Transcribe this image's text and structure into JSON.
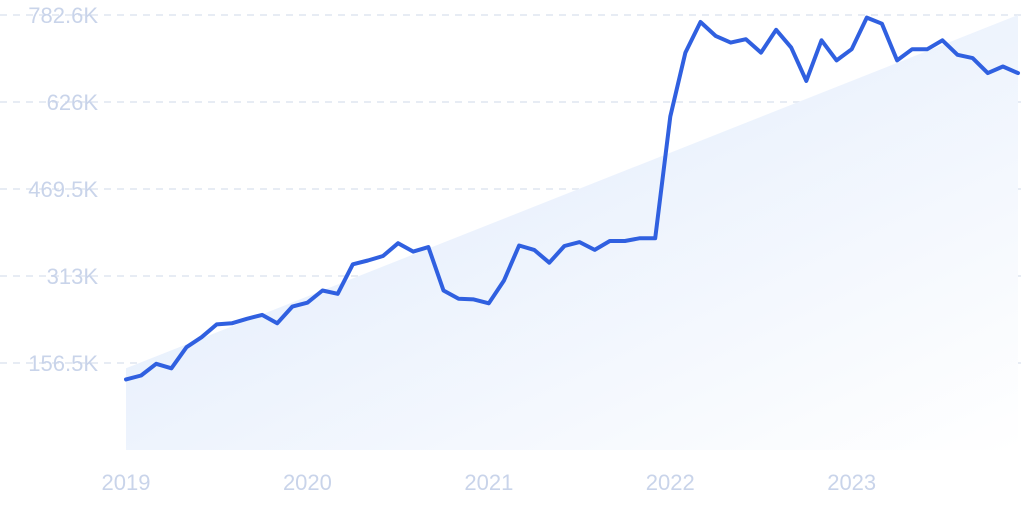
{
  "chart_data": {
    "type": "line",
    "title": "",
    "xlabel": "",
    "ylabel": "",
    "x_tick_labels": [
      "2019",
      "2020",
      "2021",
      "2022",
      "2023"
    ],
    "y_tick_labels": [
      "156.5K",
      "313K",
      "469.5K",
      "626K",
      "782.6K"
    ],
    "ylim": [
      0,
      782.6
    ],
    "y_unit": "K",
    "grid": true,
    "legend": "none",
    "colors": {
      "line": "#3060e0",
      "area_top": "#dce8fb",
      "area_bottom": "#ffffff",
      "tick": "#c9d4ea",
      "grid": "#dfe5f0"
    },
    "series": [
      {
        "x": [
          "2019-01",
          "2019-02",
          "2019-03",
          "2019-04",
          "2019-05",
          "2019-06",
          "2019-07",
          "2019-08",
          "2019-09",
          "2019-10",
          "2019-11",
          "2019-12",
          "2020-01",
          "2020-02",
          "2020-03",
          "2020-04",
          "2020-05",
          "2020-06",
          "2020-07",
          "2020-08",
          "2020-09",
          "2020-10",
          "2020-11",
          "2020-12",
          "2021-01",
          "2021-02",
          "2021-03",
          "2021-04",
          "2021-05",
          "2021-06",
          "2021-07",
          "2021-08",
          "2021-09",
          "2021-10",
          "2021-11",
          "2021-12",
          "2022-01",
          "2022-02",
          "2022-03",
          "2022-04",
          "2022-05",
          "2022-06",
          "2022-07",
          "2022-08",
          "2022-09",
          "2022-10",
          "2022-11",
          "2022-12",
          "2023-01",
          "2023-02",
          "2023-03",
          "2023-04",
          "2023-05",
          "2023-06",
          "2023-07",
          "2023-08",
          "2023-09",
          "2023-10",
          "2023-11",
          "2023-12"
        ],
        "values": [
          127,
          134,
          155,
          147,
          185,
          203,
          226,
          228,
          236,
          243,
          228,
          258,
          265,
          287,
          281,
          334,
          341,
          349,
          372,
          357,
          365,
          287,
          272,
          271,
          264,
          305,
          368,
          360,
          337,
          367,
          374,
          360,
          376,
          376,
          381,
          381,
          600,
          715,
          770,
          745,
          733,
          739,
          715,
          756,
          724,
          664,
          737,
          701,
          721,
          778,
          767,
          701,
          721,
          721,
          737,
          711,
          705,
          678,
          690,
          678
        ]
      }
    ]
  }
}
